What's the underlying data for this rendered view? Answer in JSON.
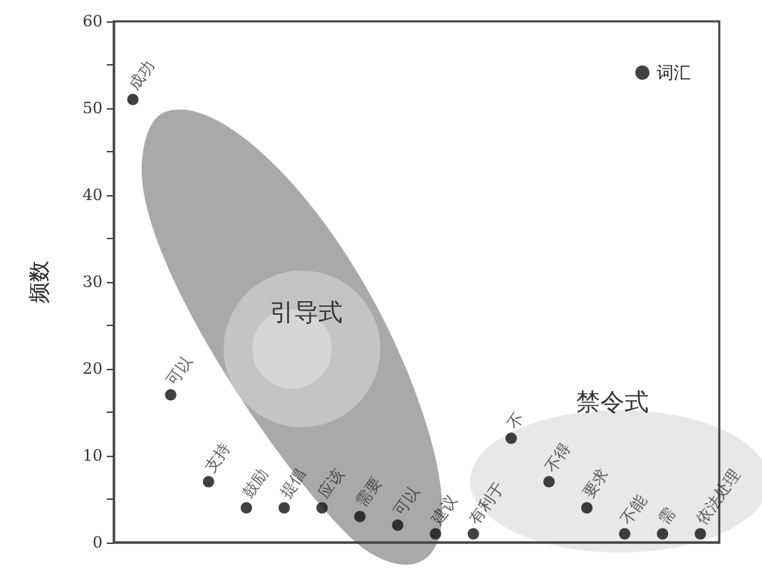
{
  "chart_data": {
    "type": "scatter",
    "ylabel": "频数",
    "categories": [
      "成功",
      "可以",
      "支持",
      "鼓励",
      "提倡",
      "应该",
      "需要",
      "可以",
      "建议",
      "有利于",
      "不",
      "不得",
      "要求",
      "不能",
      "需",
      "依法处理"
    ],
    "series": [
      {
        "name": "词汇",
        "color": "#111111",
        "values": [
          51,
          17,
          7,
          4,
          4,
          4,
          3,
          2,
          1,
          1,
          12,
          7,
          4,
          1,
          1,
          1
        ]
      }
    ],
    "annotations": [
      "引导式",
      "禁令式"
    ],
    "ylim": [
      0,
      60
    ],
    "yticks": [
      0,
      {
        "value": 5,
        "label": null
      },
      10,
      {
        "value": 15,
        "label": null
      },
      20,
      {
        "value": 25,
        "label": null
      },
      30,
      {
        "value": 35,
        "label": null
      },
      40,
      {
        "value": 45,
        "label": null
      },
      50,
      {
        "value": 55,
        "label": null
      },
      60
    ],
    "tick_labels": "y",
    "grid": false,
    "legend": "top right",
    "marker": "circle"
  }
}
